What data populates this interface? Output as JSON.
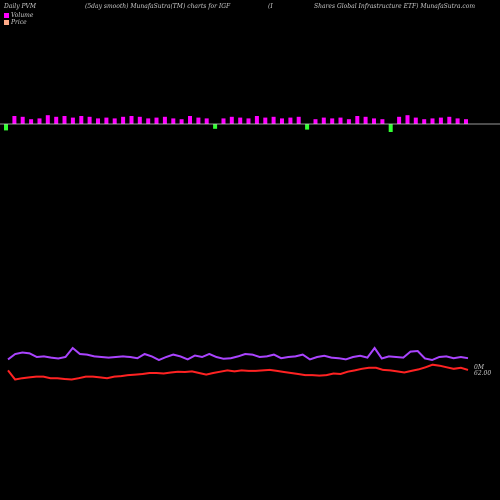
{
  "header": {
    "left": "Daily PVM",
    "mid": "(5day smooth) MunafaSutra(TM) charts for IGF",
    "paren": "(I",
    "right": "Shares Global Infrastructure   ETF) MunafaSutra.com"
  },
  "legend": [
    {
      "label": "Volume",
      "color": "#ff00ff"
    },
    {
      "label": "Price",
      "color": "#ffaa88"
    }
  ],
  "chart_data": {
    "type": "bar",
    "title": "Daily PVM",
    "colors": {
      "up": "#ff00ff",
      "down": "#33ff33",
      "baseline": "#cccccc",
      "price_line": "#ff2222",
      "volume_line": "#aa44ff"
    },
    "pvm_bars": [
      {
        "v": 0.4,
        "down": true
      },
      {
        "v": 0.5
      },
      {
        "v": 0.45
      },
      {
        "v": 0.3
      },
      {
        "v": 0.35
      },
      {
        "v": 0.55
      },
      {
        "v": 0.45
      },
      {
        "v": 0.5
      },
      {
        "v": 0.4
      },
      {
        "v": 0.5
      },
      {
        "v": 0.45
      },
      {
        "v": 0.35
      },
      {
        "v": 0.4
      },
      {
        "v": 0.35
      },
      {
        "v": 0.45
      },
      {
        "v": 0.5
      },
      {
        "v": 0.45
      },
      {
        "v": 0.35
      },
      {
        "v": 0.4
      },
      {
        "v": 0.45
      },
      {
        "v": 0.35
      },
      {
        "v": 0.3
      },
      {
        "v": 0.5
      },
      {
        "v": 0.4
      },
      {
        "v": 0.35
      },
      {
        "v": 0.3,
        "down": true
      },
      {
        "v": 0.35
      },
      {
        "v": 0.45
      },
      {
        "v": 0.4
      },
      {
        "v": 0.35
      },
      {
        "v": 0.5
      },
      {
        "v": 0.4
      },
      {
        "v": 0.45
      },
      {
        "v": 0.35
      },
      {
        "v": 0.4
      },
      {
        "v": 0.45
      },
      {
        "v": 0.35,
        "down": true
      },
      {
        "v": 0.3
      },
      {
        "v": 0.4
      },
      {
        "v": 0.35
      },
      {
        "v": 0.4
      },
      {
        "v": 0.3
      },
      {
        "v": 0.5
      },
      {
        "v": 0.45
      },
      {
        "v": 0.35
      },
      {
        "v": 0.3
      },
      {
        "v": 0.5,
        "down": true
      },
      {
        "v": 0.45
      },
      {
        "v": 0.55
      },
      {
        "v": 0.4
      },
      {
        "v": 0.3
      },
      {
        "v": 0.35
      },
      {
        "v": 0.4
      },
      {
        "v": 0.45
      },
      {
        "v": 0.35
      },
      {
        "v": 0.3
      }
    ],
    "volume_line": [
      0.62,
      0.8,
      0.85,
      0.82,
      0.7,
      0.72,
      0.68,
      0.65,
      0.7,
      1.0,
      0.8,
      0.78,
      0.72,
      0.7,
      0.68,
      0.7,
      0.72,
      0.7,
      0.66,
      0.8,
      0.72,
      0.6,
      0.7,
      0.78,
      0.72,
      0.62,
      0.75,
      0.7,
      0.8,
      0.7,
      0.64,
      0.66,
      0.72,
      0.8,
      0.78,
      0.7,
      0.72,
      0.78,
      0.66,
      0.7,
      0.72,
      0.78,
      0.62,
      0.7,
      0.74,
      0.68,
      0.66,
      0.62,
      0.7,
      0.74,
      0.68,
      1.0,
      0.65,
      0.72,
      0.7,
      0.68,
      0.88,
      0.9,
      0.65,
      0.6,
      0.7,
      0.72,
      0.66,
      0.7,
      0.66
    ],
    "price_line": [
      0.6,
      0.25,
      0.3,
      0.33,
      0.36,
      0.36,
      0.3,
      0.3,
      0.27,
      0.25,
      0.3,
      0.36,
      0.36,
      0.33,
      0.3,
      0.36,
      0.38,
      0.42,
      0.44,
      0.46,
      0.5,
      0.5,
      0.48,
      0.52,
      0.55,
      0.54,
      0.56,
      0.5,
      0.44,
      0.5,
      0.55,
      0.6,
      0.56,
      0.6,
      0.58,
      0.58,
      0.6,
      0.62,
      0.58,
      0.54,
      0.5,
      0.46,
      0.42,
      0.42,
      0.4,
      0.42,
      0.48,
      0.46,
      0.55,
      0.6,
      0.66,
      0.7,
      0.7,
      0.62,
      0.6,
      0.56,
      0.52,
      0.58,
      0.64,
      0.72,
      0.82,
      0.78,
      0.72,
      0.66,
      0.7,
      0.62
    ],
    "labels": {
      "volume_end": "0M",
      "price_end": "62.00"
    }
  }
}
